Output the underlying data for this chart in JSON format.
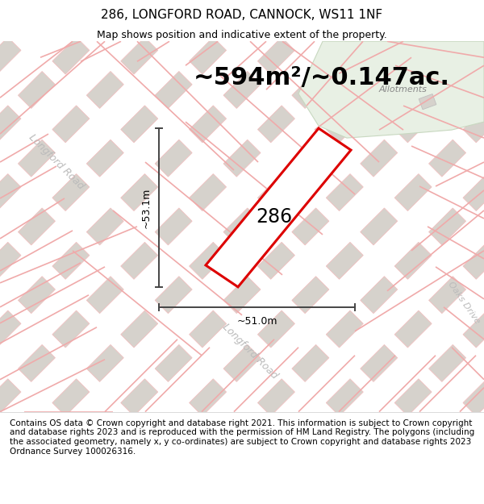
{
  "title": "286, LONGFORD ROAD, CANNOCK, WS11 1NF",
  "subtitle": "Map shows position and indicative extent of the property.",
  "area_text": "~594m²/~0.147ac.",
  "label_286": "286",
  "dim_width": "~51.0m",
  "dim_height": "~53.1m",
  "allotments_label": "Allotments",
  "longford_road_label1": "Longford Road",
  "longford_road_label2": "Longford Road",
  "oaks_drive_label": "Oaks Drive",
  "footer_text": "Contains OS data © Crown copyright and database right 2021. This information is subject to Crown copyright and database rights 2023 and is reproduced with the permission of HM Land Registry. The polygons (including the associated geometry, namely x, y co-ordinates) are subject to Crown copyright and database rights 2023 Ordnance Survey 100026316.",
  "map_bg": "#f2efea",
  "building_color": "#d6d2cc",
  "building_edge_color": "#f0c0c0",
  "allotment_color": "#e8f0e4",
  "allotment_edge": "#c8d8c0",
  "red_plot_color": "#dd0000",
  "road_line_color": "#f0aaaa",
  "dim_color": "#444444",
  "label_color": "#999999",
  "title_fontsize": 11,
  "subtitle_fontsize": 9,
  "area_fontsize": 22,
  "label_fontsize": 17,
  "footer_fontsize": 7.5,
  "road_label_fontsize": 9,
  "road_label_color": "#bbbbbb"
}
